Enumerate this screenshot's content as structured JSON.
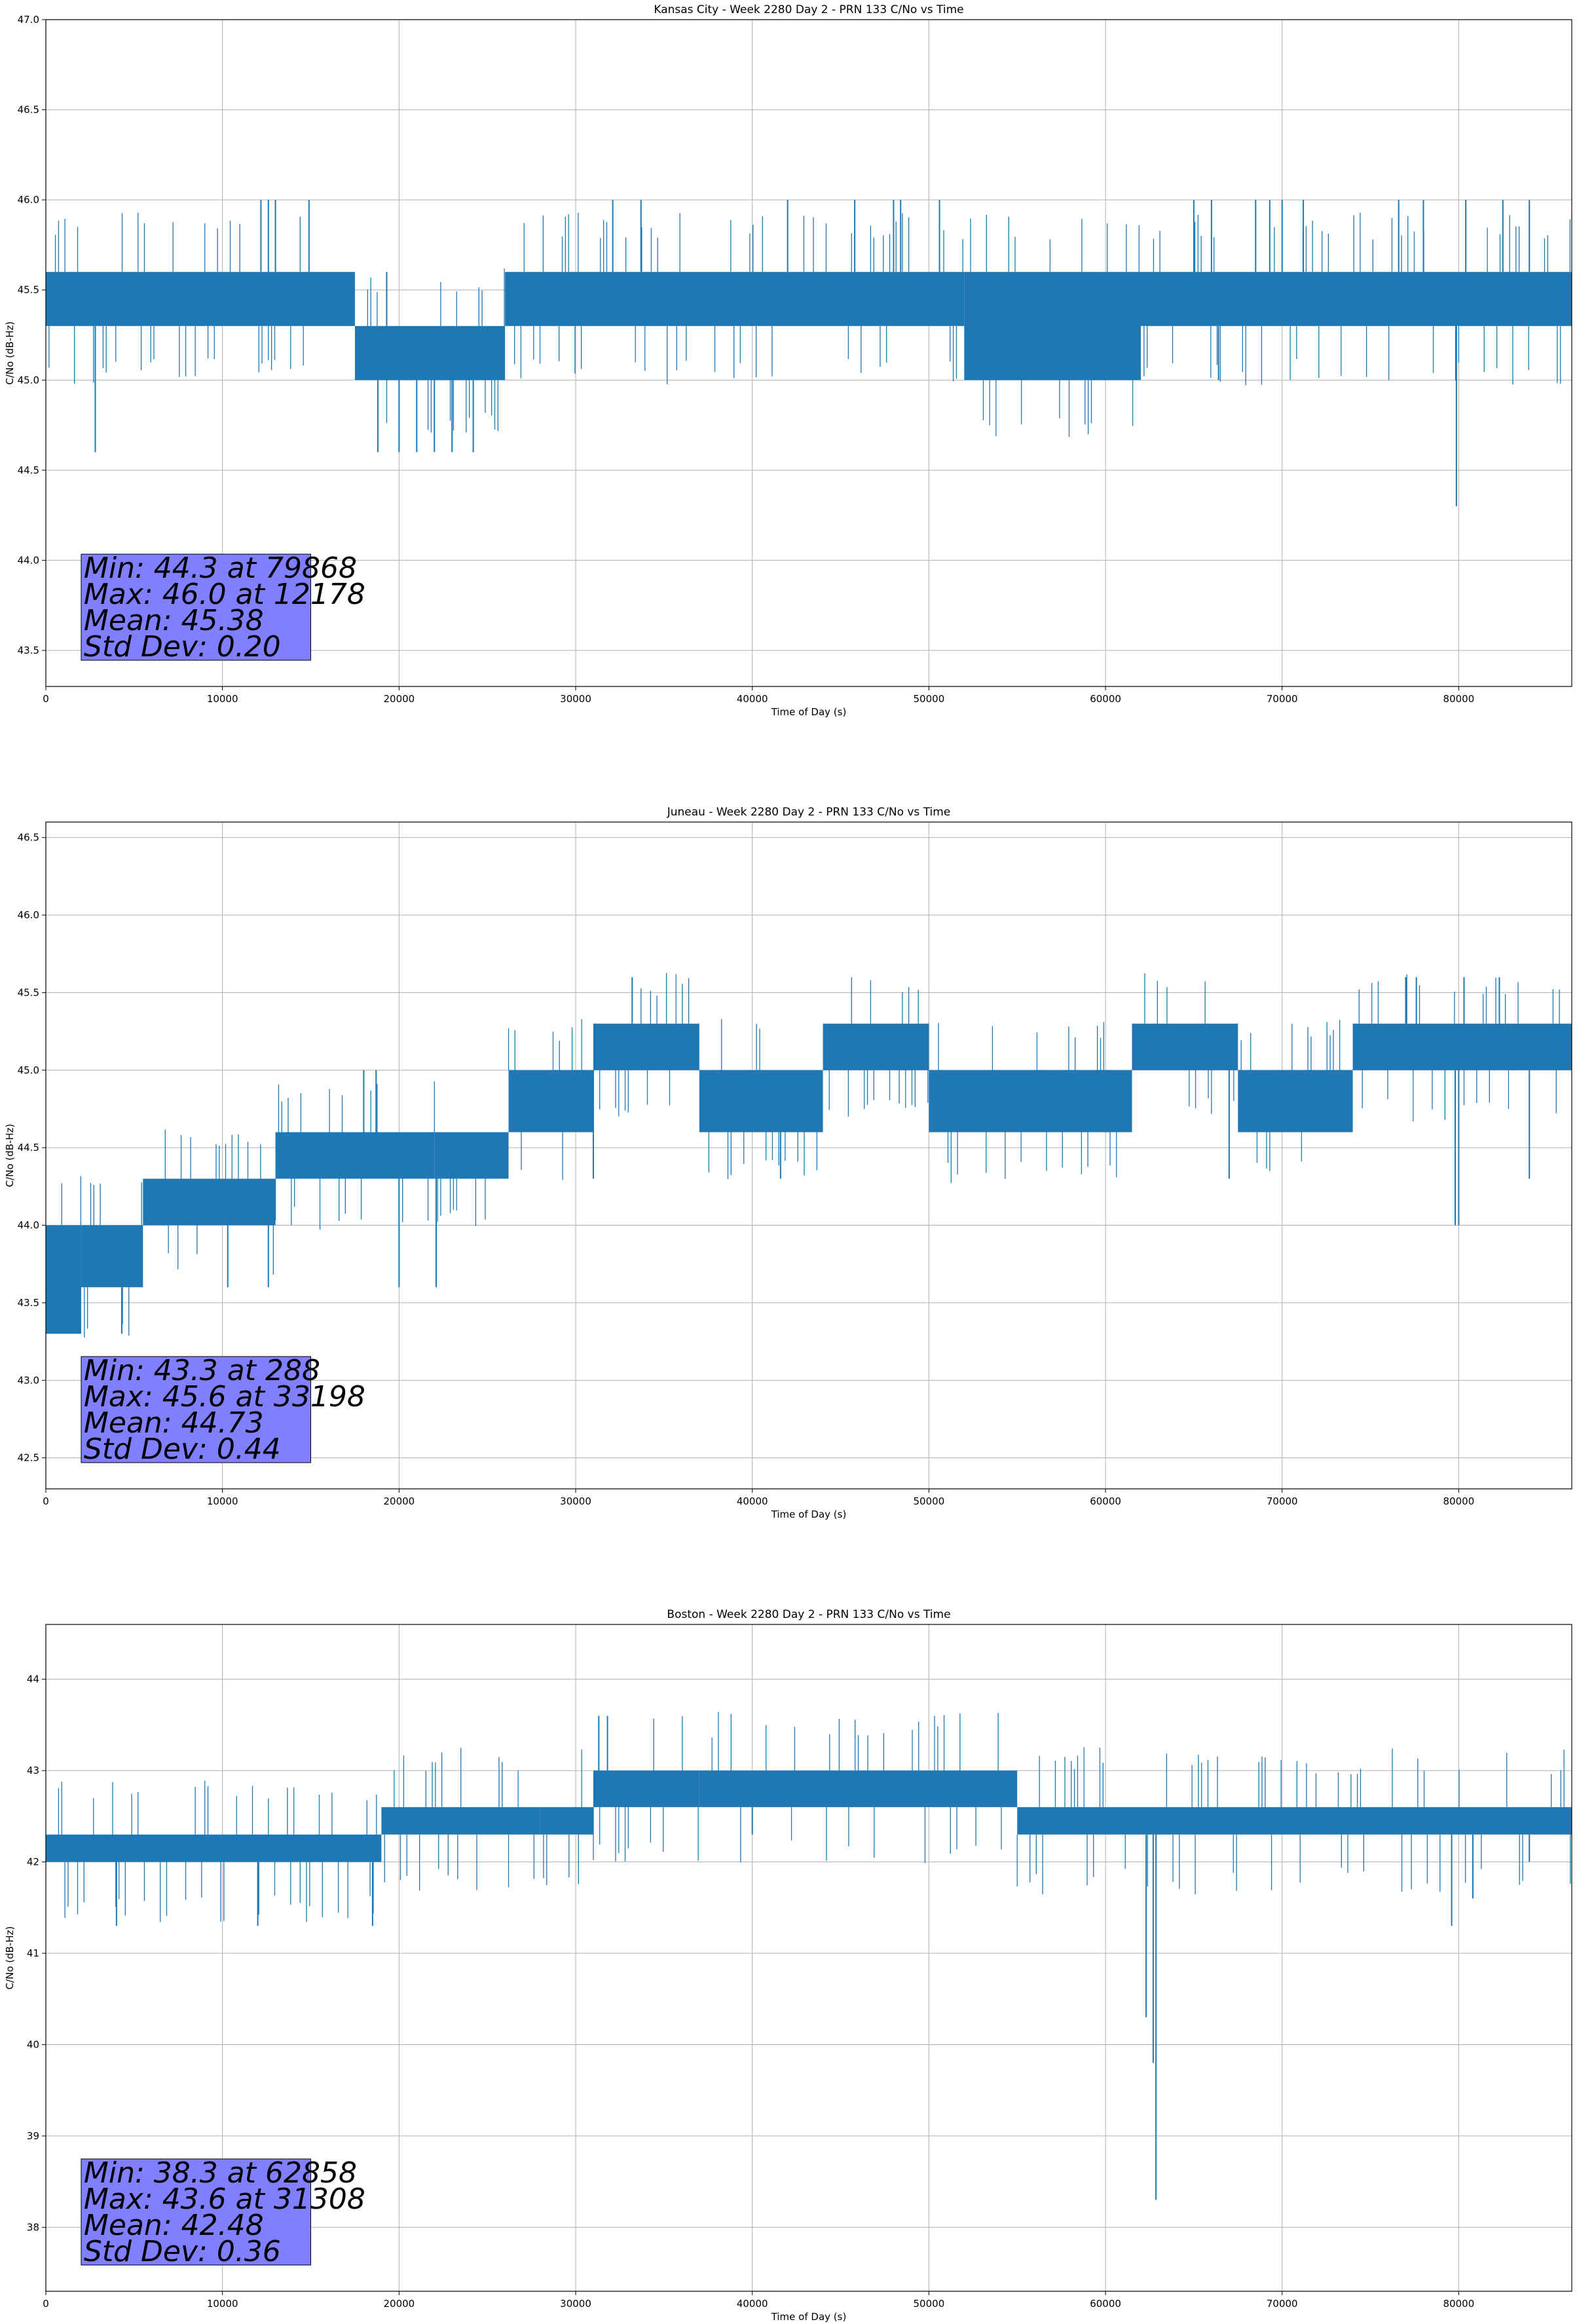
{
  "chart_data": [
    {
      "type": "line",
      "title": "Kansas City - Week 2280 Day 2 - PRN 133 C/No vs Time",
      "xlabel": "Time of Day (s)",
      "ylabel": "C/No (dB-Hz)",
      "xlim": [
        0,
        86400
      ],
      "ylim": [
        43.3,
        47.0
      ],
      "xticks": [
        0,
        10000,
        20000,
        30000,
        40000,
        50000,
        60000,
        70000,
        80000
      ],
      "xtick_labels": [
        "0",
        "10000",
        "20000",
        "30000",
        "40000",
        "50000",
        "60000",
        "70000",
        "80000"
      ],
      "yticks": [
        43.5,
        44.0,
        44.5,
        45.0,
        45.5,
        46.0,
        46.5,
        47.0
      ],
      "ytick_labels": [
        "43.5",
        "44.0",
        "44.5",
        "45.0",
        "45.5",
        "46.0",
        "46.5",
        "47.0"
      ],
      "grid": true,
      "color": "#1f77b4",
      "series": [
        {
          "band_segments": [
            {
              "x": [
                0,
                17500
              ],
              "y": [
                45.3,
                45.6
              ]
            },
            {
              "x": [
                17500,
                26000
              ],
              "y": [
                45.0,
                45.3
              ]
            },
            {
              "x": [
                26000,
                52000
              ],
              "y": [
                45.3,
                45.6
              ]
            },
            {
              "x": [
                52000,
                62000
              ],
              "y": [
                45.0,
                45.6
              ]
            },
            {
              "x": [
                62000,
                86400
              ],
              "y": [
                45.3,
                45.6
              ]
            }
          ],
          "spikes": [
            {
              "x": 2800,
              "y": 44.6
            },
            {
              "x": 12178,
              "y": 46.0
            },
            {
              "x": 12600,
              "y": 46.0
            },
            {
              "x": 13000,
              "y": 46.0
            },
            {
              "x": 14900,
              "y": 46.0
            },
            {
              "x": 19300,
              "y": 45.6
            },
            {
              "x": 18800,
              "y": 44.6
            },
            {
              "x": 20000,
              "y": 44.6
            },
            {
              "x": 21000,
              "y": 44.6
            },
            {
              "x": 22000,
              "y": 44.6
            },
            {
              "x": 23000,
              "y": 44.6
            },
            {
              "x": 24200,
              "y": 44.6
            },
            {
              "x": 32100,
              "y": 46.0
            },
            {
              "x": 33700,
              "y": 46.0
            },
            {
              "x": 42000,
              "y": 46.0
            },
            {
              "x": 45800,
              "y": 46.0
            },
            {
              "x": 48000,
              "y": 46.0
            },
            {
              "x": 48400,
              "y": 46.0
            },
            {
              "x": 50600,
              "y": 46.0
            },
            {
              "x": 65000,
              "y": 46.0
            },
            {
              "x": 66000,
              "y": 46.0
            },
            {
              "x": 68500,
              "y": 46.0
            },
            {
              "x": 69300,
              "y": 46.0
            },
            {
              "x": 70000,
              "y": 46.0
            },
            {
              "x": 71200,
              "y": 46.0
            },
            {
              "x": 76600,
              "y": 46.0
            },
            {
              "x": 78000,
              "y": 46.0
            },
            {
              "x": 79868,
              "y": 44.3
            },
            {
              "x": 80400,
              "y": 46.0
            },
            {
              "x": 82500,
              "y": 46.0
            },
            {
              "x": 84000,
              "y": 46.0
            },
            {
              "x": 66400,
              "y": 45.0
            }
          ]
        }
      ],
      "annotation": {
        "lines": [
          "Min: 44.3 at 79868",
          "Max: 46.0 at 12178",
          "Mean: 45.38",
          "Std Dev: 0.20"
        ],
        "box_color": "#8080ff"
      }
    },
    {
      "type": "line",
      "title": "Juneau - Week 2280 Day 2 - PRN 133 C/No vs Time",
      "xlabel": "Time of Day (s)",
      "ylabel": "C/No (dB-Hz)",
      "xlim": [
        0,
        86400
      ],
      "ylim": [
        42.3,
        46.6
      ],
      "xticks": [
        0,
        10000,
        20000,
        30000,
        40000,
        50000,
        60000,
        70000,
        80000
      ],
      "xtick_labels": [
        "0",
        "10000",
        "20000",
        "30000",
        "40000",
        "50000",
        "60000",
        "70000",
        "80000"
      ],
      "yticks": [
        42.5,
        43.0,
        43.5,
        44.0,
        44.5,
        45.0,
        45.5,
        46.0,
        46.5
      ],
      "ytick_labels": [
        "42.5",
        "43.0",
        "43.5",
        "44.0",
        "44.5",
        "45.0",
        "45.5",
        "46.0",
        "46.5"
      ],
      "grid": true,
      "color": "#1f77b4",
      "series": [
        {
          "band_segments": [
            {
              "x": [
                0,
                2000
              ],
              "y": [
                43.3,
                44.0
              ]
            },
            {
              "x": [
                2000,
                5500
              ],
              "y": [
                43.6,
                44.0
              ]
            },
            {
              "x": [
                5500,
                13000
              ],
              "y": [
                44.0,
                44.3
              ]
            },
            {
              "x": [
                13000,
                22000
              ],
              "y": [
                44.3,
                44.6
              ]
            },
            {
              "x": [
                22000,
                26200
              ],
              "y": [
                44.3,
                44.6
              ]
            },
            {
              "x": [
                26200,
                31000
              ],
              "y": [
                44.6,
                45.0
              ]
            },
            {
              "x": [
                31000,
                37000
              ],
              "y": [
                45.0,
                45.3
              ]
            },
            {
              "x": [
                37000,
                44000
              ],
              "y": [
                44.6,
                45.0
              ]
            },
            {
              "x": [
                44000,
                50000
              ],
              "y": [
                45.0,
                45.3
              ]
            },
            {
              "x": [
                50000,
                61500
              ],
              "y": [
                44.6,
                45.0
              ]
            },
            {
              "x": [
                61500,
                67500
              ],
              "y": [
                45.0,
                45.3
              ]
            },
            {
              "x": [
                67500,
                74000
              ],
              "y": [
                44.6,
                45.0
              ]
            },
            {
              "x": [
                74000,
                86400
              ],
              "y": [
                45.0,
                45.3
              ]
            }
          ],
          "spikes": [
            {
              "x": 288,
              "y": 43.3
            },
            {
              "x": 4300,
              "y": 43.3
            },
            {
              "x": 10300,
              "y": 43.6
            },
            {
              "x": 12600,
              "y": 43.6
            },
            {
              "x": 20000,
              "y": 43.6
            },
            {
              "x": 22100,
              "y": 43.6
            },
            {
              "x": 33198,
              "y": 45.6
            },
            {
              "x": 31000,
              "y": 44.3
            },
            {
              "x": 41600,
              "y": 44.3
            },
            {
              "x": 67000,
              "y": 44.3
            },
            {
              "x": 79800,
              "y": 44.0
            },
            {
              "x": 80000,
              "y": 44.0
            },
            {
              "x": 77000,
              "y": 45.6
            },
            {
              "x": 77600,
              "y": 45.6
            },
            {
              "x": 80300,
              "y": 45.6
            },
            {
              "x": 82300,
              "y": 45.6
            },
            {
              "x": 84000,
              "y": 44.3
            },
            {
              "x": 18000,
              "y": 45.0
            },
            {
              "x": 18700,
              "y": 45.0
            }
          ]
        }
      ],
      "annotation": {
        "lines": [
          "Min: 43.3 at 288",
          "Max: 45.6 at 33198",
          "Mean: 44.73",
          "Std Dev: 0.44"
        ],
        "box_color": "#8080ff"
      }
    },
    {
      "type": "line",
      "title": "Boston - Week 2280 Day 2 - PRN 133 C/No vs Time",
      "xlabel": "Time of Day (s)",
      "ylabel": "C/No (dB-Hz)",
      "xlim": [
        0,
        86400
      ],
      "ylim": [
        37.3,
        44.6
      ],
      "xticks": [
        0,
        10000,
        20000,
        30000,
        40000,
        50000,
        60000,
        70000,
        80000
      ],
      "xtick_labels": [
        "0",
        "10000",
        "20000",
        "30000",
        "40000",
        "50000",
        "60000",
        "70000",
        "80000"
      ],
      "yticks": [
        38,
        39,
        40,
        41,
        42,
        43,
        44
      ],
      "ytick_labels": [
        "38",
        "39",
        "40",
        "41",
        "42",
        "43",
        "44"
      ],
      "grid": true,
      "color": "#1f77b4",
      "series": [
        {
          "band_segments": [
            {
              "x": [
                0,
                19000
              ],
              "y": [
                42.0,
                42.3
              ]
            },
            {
              "x": [
                19000,
                28000
              ],
              "y": [
                42.3,
                42.6
              ]
            },
            {
              "x": [
                28000,
                31000
              ],
              "y": [
                42.3,
                42.6
              ]
            },
            {
              "x": [
                31000,
                37000
              ],
              "y": [
                42.6,
                43.0
              ]
            },
            {
              "x": [
                37000,
                55000
              ],
              "y": [
                42.6,
                43.0
              ]
            },
            {
              "x": [
                55000,
                86400
              ],
              "y": [
                42.3,
                42.6
              ]
            }
          ],
          "spikes": [
            {
              "x": 4000,
              "y": 41.3
            },
            {
              "x": 12000,
              "y": 41.3
            },
            {
              "x": 18500,
              "y": 41.3
            },
            {
              "x": 31308,
              "y": 43.6
            },
            {
              "x": 31800,
              "y": 43.6
            },
            {
              "x": 62300,
              "y": 40.3
            },
            {
              "x": 62858,
              "y": 38.3
            },
            {
              "x": 62700,
              "y": 39.8
            },
            {
              "x": 79600,
              "y": 41.3
            },
            {
              "x": 80800,
              "y": 41.6
            },
            {
              "x": 40000,
              "y": 42.3
            },
            {
              "x": 84000,
              "y": 42.0
            }
          ]
        }
      ],
      "annotation": {
        "lines": [
          "Min: 38.3 at 62858",
          "Max: 43.6 at 31308",
          "Mean: 42.48",
          "Std Dev: 0.36"
        ],
        "box_color": "#8080ff"
      }
    }
  ]
}
